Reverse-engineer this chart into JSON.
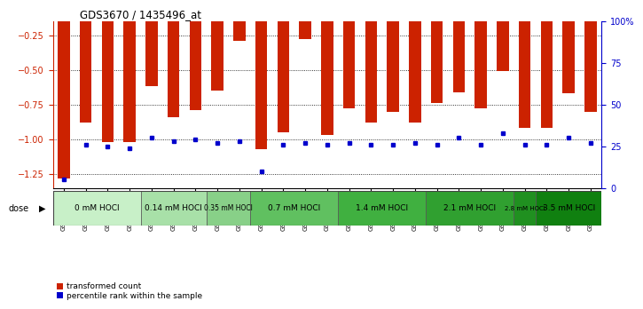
{
  "title": "GDS3670 / 1435496_at",
  "samples": [
    "GSM387601",
    "GSM387602",
    "GSM387605",
    "GSM387606",
    "GSM387645",
    "GSM387646",
    "GSM387647",
    "GSM387648",
    "GSM387649",
    "GSM387676",
    "GSM387677",
    "GSM387678",
    "GSM387679",
    "GSM387698",
    "GSM387699",
    "GSM387700",
    "GSM387701",
    "GSM387702",
    "GSM387703",
    "GSM387713",
    "GSM387714",
    "GSM387716",
    "GSM387750",
    "GSM387751",
    "GSM387752"
  ],
  "transformed_count": [
    -1.28,
    -0.88,
    -1.02,
    -1.02,
    -0.62,
    -0.84,
    -0.79,
    -0.65,
    -0.29,
    -1.07,
    -0.95,
    -0.28,
    -0.97,
    -0.78,
    -0.88,
    -0.8,
    -0.88,
    -0.74,
    -0.66,
    -0.78,
    -0.51,
    -0.92,
    -0.92,
    -0.67,
    -0.8
  ],
  "percentile_rank": [
    5,
    26,
    25,
    24,
    30,
    28,
    29,
    27,
    28,
    10,
    26,
    27,
    26,
    27,
    26,
    26,
    27,
    26,
    30,
    26,
    33,
    26,
    26,
    30,
    27
  ],
  "dose_groups": [
    {
      "label": "0 mM HOCl",
      "start": 0,
      "end": 4,
      "color": "#c8f0c8"
    },
    {
      "label": "0.14 mM HOCl",
      "start": 4,
      "end": 7,
      "color": "#a8e0a8"
    },
    {
      "label": "0.35 mM HOCl",
      "start": 7,
      "end": 9,
      "color": "#88d088"
    },
    {
      "label": "0.7 mM HOCl",
      "start": 9,
      "end": 13,
      "color": "#60c060"
    },
    {
      "label": "1.4 mM HOCl",
      "start": 13,
      "end": 17,
      "color": "#40b040"
    },
    {
      "label": "2.1 mM HOCl",
      "start": 17,
      "end": 21,
      "color": "#30a030"
    },
    {
      "label": "2.8 mM HOCl",
      "start": 21,
      "end": 22,
      "color": "#209020"
    },
    {
      "label": "3.5 mM HOCl",
      "start": 22,
      "end": 25,
      "color": "#108010"
    }
  ],
  "ylim_left": [
    -1.35,
    -0.15
  ],
  "ylim_right": [
    0,
    100
  ],
  "yticks_left": [
    -1.25,
    -1.0,
    -0.75,
    -0.5,
    -0.25
  ],
  "yticks_right": [
    0,
    25,
    50,
    75,
    100
  ],
  "bar_color": "#cc2200",
  "percentile_color": "#0000cc",
  "background_color": "#ffffff",
  "plot_bg": "#ffffff"
}
